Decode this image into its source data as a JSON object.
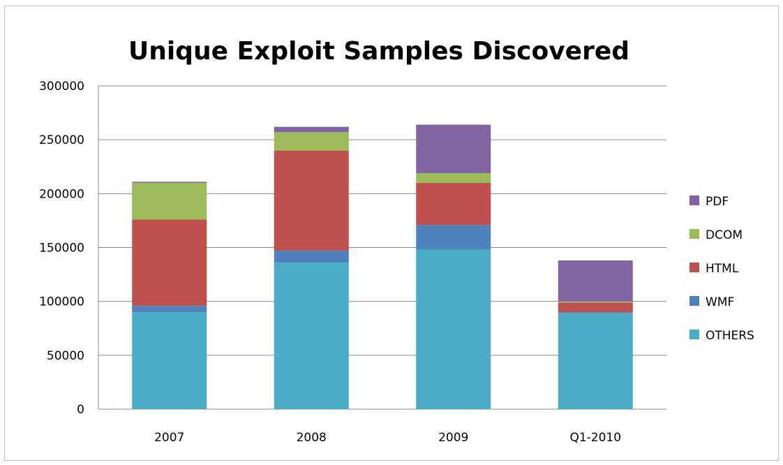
{
  "chart_data": {
    "type": "bar",
    "stacked": true,
    "title": "Unique Exploit Samples Discovered",
    "xlabel": "",
    "ylabel": "",
    "categories": [
      "2007",
      "2008",
      "2009",
      "Q1-2010"
    ],
    "ylim": [
      0,
      300000
    ],
    "yticks": [
      0,
      50000,
      100000,
      150000,
      200000,
      250000,
      300000
    ],
    "ytick_labels": [
      "0",
      "50000",
      "100000",
      "150000",
      "200000",
      "250000",
      "300000"
    ],
    "grid": true,
    "legend_position": "right",
    "series": [
      {
        "name": "OTHERS",
        "color": "#4bacc6",
        "values": [
          90000,
          136000,
          148000,
          89000
        ]
      },
      {
        "name": "WMF",
        "color": "#4f81bd",
        "values": [
          6000,
          11000,
          23000,
          1000
        ]
      },
      {
        "name": "HTML",
        "color": "#c0504d",
        "values": [
          80000,
          93000,
          39000,
          9000
        ]
      },
      {
        "name": "DCOM",
        "color": "#9bbb59",
        "values": [
          34000,
          17000,
          9000,
          1000
        ]
      },
      {
        "name": "PDF",
        "color": "#8064a2",
        "values": [
          1000,
          5000,
          45000,
          38000
        ]
      }
    ]
  }
}
